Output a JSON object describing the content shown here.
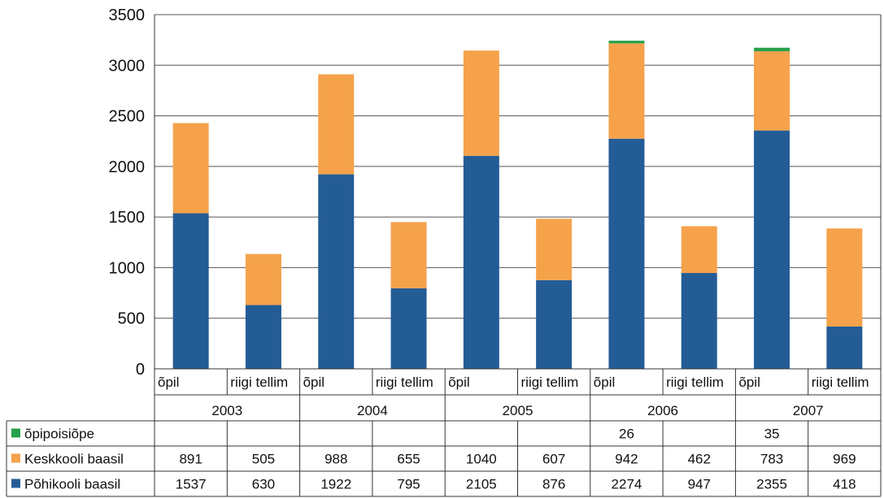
{
  "chart_data": {
    "type": "bar",
    "stacked": true,
    "ylim": [
      0,
      3500
    ],
    "yticks": [
      "0",
      "500",
      "1000",
      "1500",
      "2000",
      "2500",
      "3000",
      "3500"
    ],
    "grid": true,
    "legend_placement": "data-table-left",
    "groups": [
      "2003",
      "2004",
      "2005",
      "2006",
      "2007"
    ],
    "categories": [
      "õpil",
      "riigi tellim",
      "õpil",
      "riigi tellim",
      "õpil",
      "riigi tellim",
      "õpil",
      "riigi tellim",
      "õpil",
      "riigi tellim"
    ],
    "series": [
      {
        "name": "Põhikooli baasil",
        "color": "#245c96",
        "values": [
          1537,
          630,
          1922,
          795,
          2105,
          876,
          2274,
          947,
          2355,
          418
        ],
        "labels": [
          "1537",
          "630",
          "1922",
          "795",
          "2105",
          "876",
          "2274",
          "947",
          "2355",
          "418"
        ]
      },
      {
        "name": "Keskkooli baasil",
        "color": "#f5a24b",
        "values": [
          891,
          505,
          988,
          655,
          1040,
          607,
          942,
          462,
          783,
          969
        ],
        "labels": [
          "891",
          "505",
          "988",
          "655",
          "1040",
          "607",
          "942",
          "462",
          "783",
          "969"
        ]
      },
      {
        "name": "õpipoisiõpe",
        "color": "#27a04a",
        "values": [
          0,
          0,
          0,
          0,
          0,
          0,
          26,
          0,
          35,
          0
        ],
        "labels": [
          "",
          "",
          "",
          "",
          "",
          "",
          "26",
          "",
          "35",
          ""
        ]
      }
    ]
  }
}
